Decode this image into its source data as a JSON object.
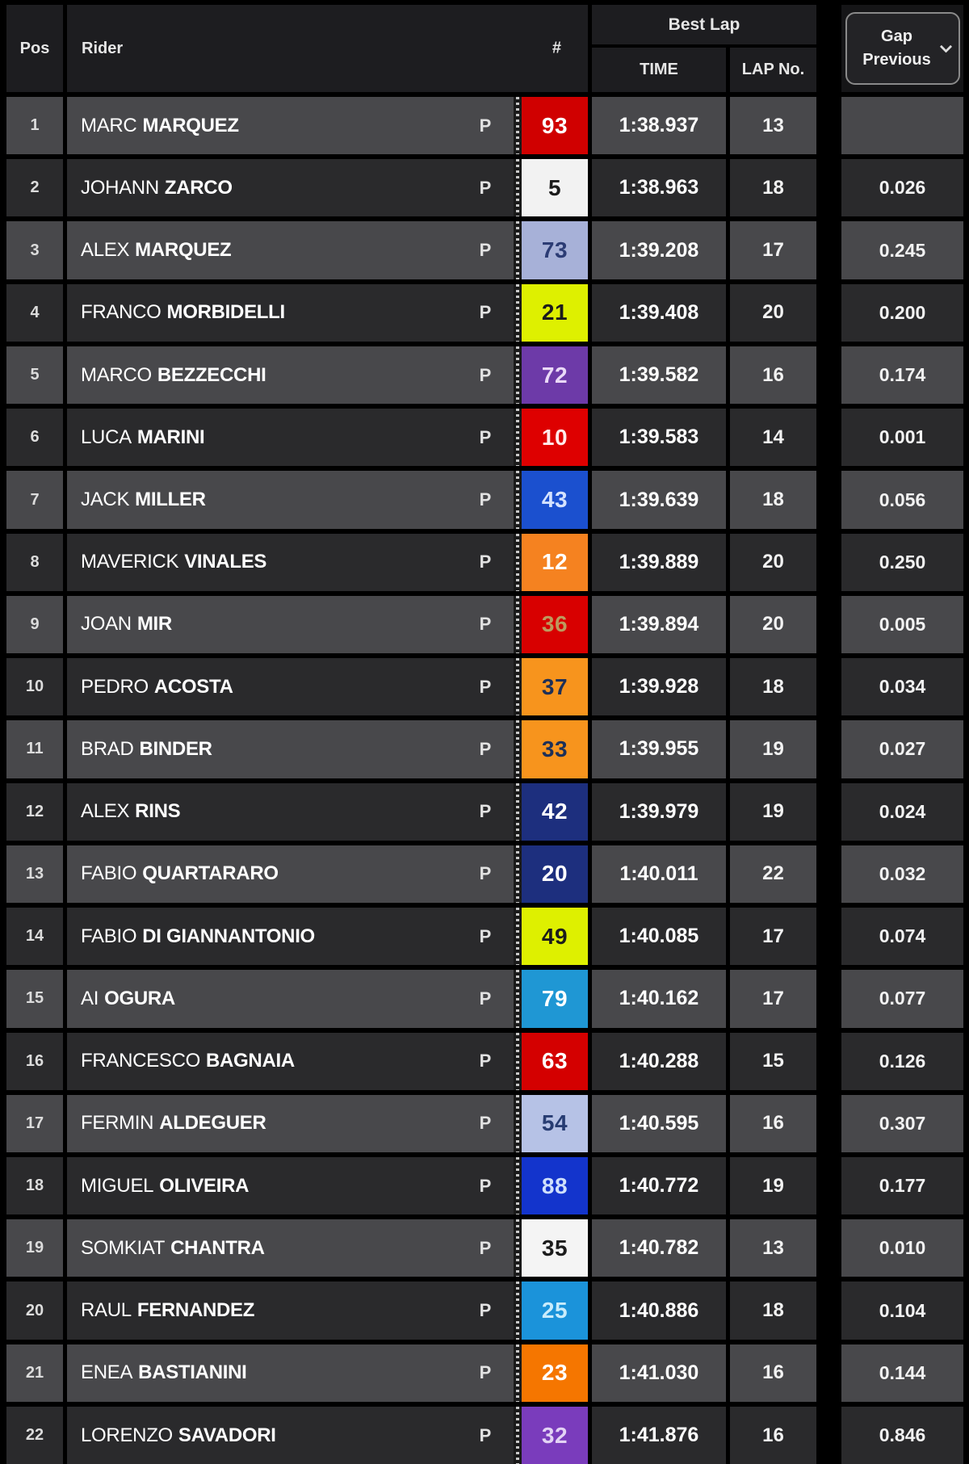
{
  "header": {
    "pos": "Pos",
    "rider": "Rider",
    "number": "#",
    "best_lap": "Best Lap",
    "time": "TIME",
    "lap_no": "LAP No.",
    "gap_selector_line1": "Gap",
    "gap_selector_line2": "Previous"
  },
  "theme": {
    "background": "#000000",
    "header_bg": "#1d1d20",
    "row_odd_bg": "#48484b",
    "row_even_bg": "#2a2a2c",
    "text": "#ffffff"
  },
  "rider_icon": "P",
  "rows": [
    {
      "pos": "1",
      "first": "MARC",
      "last": "MARQUEZ",
      "num": "93",
      "badge_bg": "#d00000",
      "badge_fg": "#ffffff",
      "time": "1:38.937",
      "lap": "13",
      "gap": ""
    },
    {
      "pos": "2",
      "first": "JOHANN",
      "last": "ZARCO",
      "num": "5",
      "badge_bg": "#f2f2f2",
      "badge_fg": "#1c1c1c",
      "time": "1:38.963",
      "lap": "18",
      "gap": "0.026"
    },
    {
      "pos": "3",
      "first": "ALEX",
      "last": "MARQUEZ",
      "num": "73",
      "badge_bg": "#a7b1d8",
      "badge_fg": "#2c3c74",
      "time": "1:39.208",
      "lap": "17",
      "gap": "0.245"
    },
    {
      "pos": "4",
      "first": "FRANCO",
      "last": "MORBIDELLI",
      "num": "21",
      "badge_bg": "#def000",
      "badge_fg": "#1c1c1c",
      "time": "1:39.408",
      "lap": "20",
      "gap": "0.200"
    },
    {
      "pos": "5",
      "first": "MARCO",
      "last": "BEZZECCHI",
      "num": "72",
      "badge_bg": "#6d3aa8",
      "badge_fg": "#ead9f7",
      "time": "1:39.582",
      "lap": "16",
      "gap": "0.174"
    },
    {
      "pos": "6",
      "first": "LUCA",
      "last": "MARINI",
      "num": "10",
      "badge_bg": "#de0000",
      "badge_fg": "#ffeaea",
      "time": "1:39.583",
      "lap": "14",
      "gap": "0.001"
    },
    {
      "pos": "7",
      "first": "JACK",
      "last": "MILLER",
      "num": "43",
      "badge_bg": "#1b50cf",
      "badge_fg": "#d4e2ff",
      "time": "1:39.639",
      "lap": "18",
      "gap": "0.056"
    },
    {
      "pos": "8",
      "first": "MAVERICK",
      "last": "VINALES",
      "num": "12",
      "badge_bg": "#f58220",
      "badge_fg": "#ffffff",
      "time": "1:39.889",
      "lap": "20",
      "gap": "0.250"
    },
    {
      "pos": "9",
      "first": "JOAN",
      "last": "MIR",
      "num": "36",
      "badge_bg": "#d80000",
      "badge_fg": "#bd9a5e",
      "time": "1:39.894",
      "lap": "20",
      "gap": "0.005"
    },
    {
      "pos": "10",
      "first": "PEDRO",
      "last": "ACOSTA",
      "num": "37",
      "badge_bg": "#f7941d",
      "badge_fg": "#1d3058",
      "time": "1:39.928",
      "lap": "18",
      "gap": "0.034"
    },
    {
      "pos": "11",
      "first": "BRAD",
      "last": "BINDER",
      "num": "33",
      "badge_bg": "#f7941d",
      "badge_fg": "#1d3058",
      "time": "1:39.955",
      "lap": "19",
      "gap": "0.027"
    },
    {
      "pos": "12",
      "first": "ALEX",
      "last": "RINS",
      "num": "42",
      "badge_bg": "#1d2f7e",
      "badge_fg": "#ffffff",
      "time": "1:39.979",
      "lap": "19",
      "gap": "0.024"
    },
    {
      "pos": "13",
      "first": "FABIO",
      "last": "QUARTARARO",
      "num": "20",
      "badge_bg": "#1d2f7e",
      "badge_fg": "#ffffff",
      "time": "1:40.011",
      "lap": "22",
      "gap": "0.032"
    },
    {
      "pos": "14",
      "first": "FABIO",
      "last": "DI GIANNANTONIO",
      "num": "49",
      "badge_bg": "#def000",
      "badge_fg": "#1c1c1c",
      "time": "1:40.085",
      "lap": "17",
      "gap": "0.074"
    },
    {
      "pos": "15",
      "first": "AI",
      "last": "OGURA",
      "num": "79",
      "badge_bg": "#1f97d4",
      "badge_fg": "#ffffff",
      "time": "1:40.162",
      "lap": "17",
      "gap": "0.077"
    },
    {
      "pos": "16",
      "first": "FRANCESCO",
      "last": "BAGNAIA",
      "num": "63",
      "badge_bg": "#d40000",
      "badge_fg": "#ffffff",
      "time": "1:40.288",
      "lap": "15",
      "gap": "0.126"
    },
    {
      "pos": "17",
      "first": "FERMIN",
      "last": "ALDEGUER",
      "num": "54",
      "badge_bg": "#b6c2e6",
      "badge_fg": "#273c72",
      "time": "1:40.595",
      "lap": "16",
      "gap": "0.307"
    },
    {
      "pos": "18",
      "first": "MIGUEL",
      "last": "OLIVEIRA",
      "num": "88",
      "badge_bg": "#1334cc",
      "badge_fg": "#cfe0fb",
      "time": "1:40.772",
      "lap": "19",
      "gap": "0.177"
    },
    {
      "pos": "19",
      "first": "SOMKIAT",
      "last": "CHANTRA",
      "num": "35",
      "badge_bg": "#f4f4f4",
      "badge_fg": "#1c1c1c",
      "time": "1:40.782",
      "lap": "13",
      "gap": "0.010"
    },
    {
      "pos": "20",
      "first": "RAUL",
      "last": "FERNANDEZ",
      "num": "25",
      "badge_bg": "#1b93da",
      "badge_fg": "#c9ecfb",
      "time": "1:40.886",
      "lap": "18",
      "gap": "0.104"
    },
    {
      "pos": "21",
      "first": "ENEA",
      "last": "BASTIANINI",
      "num": "23",
      "badge_bg": "#f57600",
      "badge_fg": "#ffffff",
      "time": "1:41.030",
      "lap": "16",
      "gap": "0.144"
    },
    {
      "pos": "22",
      "first": "LORENZO",
      "last": "SAVADORI",
      "num": "32",
      "badge_bg": "#7a3cbc",
      "badge_fg": "#e3d3f4",
      "time": "1:41.876",
      "lap": "16",
      "gap": "0.846"
    }
  ]
}
